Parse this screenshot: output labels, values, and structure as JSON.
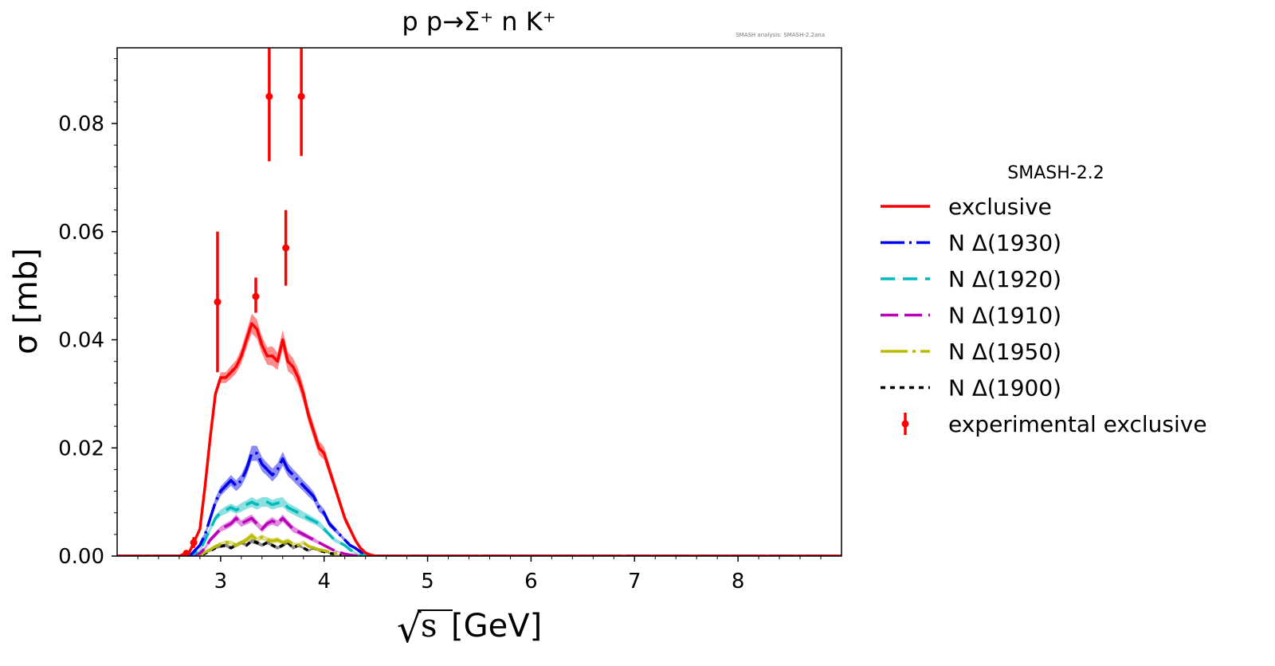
{
  "chart_data": {
    "type": "line",
    "title": "p p→Σ⁺ n K⁺",
    "annotation": "SMASH analysis: SMASH-2.2ana",
    "xlabel_sqrt": "√",
    "xlabel_s": "s",
    "xlabel_unit": "[GeV]",
    "ylabel": "σ [mb]",
    "xlim": [
      2.0,
      9.0
    ],
    "ylim": [
      0.0,
      0.094
    ],
    "xticks": [
      3,
      4,
      5,
      6,
      7,
      8
    ],
    "xtick_labels": [
      "3",
      "4",
      "5",
      "6",
      "7",
      "8"
    ],
    "yticks": [
      0.0,
      0.02,
      0.04,
      0.06,
      0.08
    ],
    "ytick_labels": [
      "0.00",
      "0.02",
      "0.04",
      "0.06",
      "0.08"
    ],
    "grid": false,
    "legend_placement": "outside-right",
    "legend_title": "SMASH-2.2",
    "x": [
      2.0,
      2.6,
      2.7,
      2.8,
      2.85,
      2.9,
      2.95,
      3.0,
      3.05,
      3.1,
      3.15,
      3.2,
      3.25,
      3.3,
      3.35,
      3.4,
      3.45,
      3.5,
      3.55,
      3.6,
      3.65,
      3.7,
      3.75,
      3.8,
      3.85,
      3.9,
      3.95,
      4.0,
      4.05,
      4.1,
      4.15,
      4.2,
      4.25,
      4.3,
      4.35,
      4.4,
      4.45,
      4.5,
      5.0,
      9.0
    ],
    "series": [
      {
        "name": "exclusive",
        "color": "#ff0000",
        "dash": "solid",
        "values": [
          0,
          0,
          0.0008,
          0.005,
          0.013,
          0.022,
          0.03,
          0.033,
          0.033,
          0.034,
          0.035,
          0.037,
          0.04,
          0.043,
          0.042,
          0.039,
          0.037,
          0.037,
          0.036,
          0.04,
          0.036,
          0.035,
          0.033,
          0.03,
          0.026,
          0.023,
          0.02,
          0.019,
          0.016,
          0.013,
          0.01,
          0.007,
          0.005,
          0.003,
          0.0015,
          0.0006,
          0.0002,
          0,
          0,
          0
        ],
        "band": [
          0,
          0,
          0.0003,
          0.0005,
          0.0006,
          0.0007,
          0.0008,
          0.001,
          0.001,
          0.0012,
          0.0012,
          0.0014,
          0.0016,
          0.0018,
          0.0018,
          0.0016,
          0.0016,
          0.0018,
          0.0016,
          0.0018,
          0.0018,
          0.0016,
          0.0016,
          0.0016,
          0.0014,
          0.0014,
          0.0013,
          0.0012,
          0.0011,
          0.001,
          0.0009,
          0.0008,
          0.0006,
          0.0005,
          0.0004,
          0.0003,
          0.0002,
          0,
          0,
          0
        ]
      },
      {
        "name": "N Δ(1930)",
        "color": "#0000ee",
        "dash": "30 6 3 6",
        "values": [
          0,
          0,
          0,
          0.002,
          0.004,
          0.007,
          0.01,
          0.012,
          0.013,
          0.014,
          0.013,
          0.014,
          0.016,
          0.019,
          0.019,
          0.017,
          0.016,
          0.015,
          0.016,
          0.018,
          0.016,
          0.015,
          0.014,
          0.013,
          0.012,
          0.011,
          0.009,
          0.008,
          0.006,
          0.005,
          0.004,
          0.003,
          0.002,
          0.0015,
          0.0008,
          0.0003,
          0.0001,
          0,
          0,
          0
        ],
        "band": [
          0,
          0,
          0,
          0.0004,
          0.0005,
          0.0006,
          0.0008,
          0.0009,
          0.0009,
          0.001,
          0.001,
          0.0011,
          0.0012,
          0.0014,
          0.0014,
          0.0013,
          0.0012,
          0.0012,
          0.0012,
          0.0013,
          0.0012,
          0.0011,
          0.0011,
          0.001,
          0.001,
          0.0009,
          0.0008,
          0.0007,
          0.0006,
          0.0005,
          0.0004,
          0.0003,
          0.0003,
          0.0002,
          0.0002,
          0.0001,
          0.0001,
          0,
          0,
          0
        ]
      },
      {
        "name": "N Δ(1920)",
        "color": "#00bbbb",
        "dash": "18 10",
        "values": [
          0,
          0,
          0,
          0.001,
          0.003,
          0.005,
          0.007,
          0.008,
          0.0085,
          0.009,
          0.0085,
          0.009,
          0.0095,
          0.01,
          0.0095,
          0.01,
          0.01,
          0.0095,
          0.0098,
          0.01,
          0.009,
          0.0085,
          0.008,
          0.0075,
          0.007,
          0.0065,
          0.006,
          0.005,
          0.004,
          0.003,
          0.0025,
          0.002,
          0.0012,
          0.0006,
          0.0003,
          0.0001,
          0,
          0,
          0,
          0
        ],
        "band": [
          0,
          0,
          0,
          0.0003,
          0.0004,
          0.0005,
          0.0006,
          0.0006,
          0.0007,
          0.0007,
          0.0007,
          0.0008,
          0.0008,
          0.0009,
          0.0009,
          0.0009,
          0.0009,
          0.0009,
          0.0009,
          0.0009,
          0.0008,
          0.0008,
          0.0008,
          0.0007,
          0.0007,
          0.0006,
          0.0006,
          0.0005,
          0.0004,
          0.0004,
          0.0003,
          0.0003,
          0.0002,
          0.0002,
          0.0001,
          0.0001,
          0,
          0,
          0,
          0
        ]
      },
      {
        "name": "N Δ(1910)",
        "color": "#bb00bb",
        "dash": "22 8",
        "values": [
          0,
          0,
          0,
          0.0005,
          0.0015,
          0.003,
          0.004,
          0.005,
          0.0055,
          0.006,
          0.007,
          0.006,
          0.0065,
          0.007,
          0.006,
          0.005,
          0.006,
          0.0065,
          0.006,
          0.007,
          0.006,
          0.005,
          0.0045,
          0.004,
          0.0035,
          0.003,
          0.0025,
          0.002,
          0.0015,
          0.001,
          0.0007,
          0.0004,
          0.0002,
          0.0001,
          0,
          0,
          0,
          0,
          0,
          0
        ],
        "band": [
          0,
          0,
          0,
          0.0002,
          0.0003,
          0.0004,
          0.0005,
          0.0005,
          0.0006,
          0.0006,
          0.0007,
          0.0006,
          0.0007,
          0.0007,
          0.0006,
          0.0006,
          0.0006,
          0.0007,
          0.0006,
          0.0007,
          0.0006,
          0.0006,
          0.0005,
          0.0005,
          0.0004,
          0.0004,
          0.0003,
          0.0003,
          0.0002,
          0.0002,
          0.0001,
          0.0001,
          0.0001,
          0,
          0,
          0,
          0,
          0,
          0,
          0
        ]
      },
      {
        "name": "N Δ(1950)",
        "color": "#bbbb00",
        "dash": "34 6 4 6",
        "values": [
          0,
          0,
          0,
          0.0002,
          0.0007,
          0.0012,
          0.0018,
          0.0022,
          0.0025,
          0.0025,
          0.002,
          0.0025,
          0.003,
          0.0038,
          0.003,
          0.0035,
          0.003,
          0.0028,
          0.003,
          0.0025,
          0.0028,
          0.0022,
          0.002,
          0.0025,
          0.0018,
          0.0015,
          0.0012,
          0.001,
          0.0008,
          0.0005,
          0.0003,
          0.0002,
          0.0001,
          0,
          0,
          0,
          0,
          0,
          0,
          0
        ],
        "band": [
          0,
          0,
          0,
          0.0001,
          0.0002,
          0.0003,
          0.0003,
          0.0004,
          0.0004,
          0.0004,
          0.0004,
          0.0004,
          0.0005,
          0.0006,
          0.0005,
          0.0005,
          0.0005,
          0.0005,
          0.0005,
          0.0004,
          0.0005,
          0.0004,
          0.0004,
          0.0004,
          0.0003,
          0.0003,
          0.0003,
          0.0002,
          0.0002,
          0.0001,
          0.0001,
          0.0001,
          0,
          0,
          0,
          0,
          0,
          0,
          0,
          0
        ]
      },
      {
        "name": "N Δ(1900)",
        "color": "#000000",
        "dash": "6 6",
        "values": [
          0,
          0,
          0,
          0.0001,
          0.0005,
          0.001,
          0.0015,
          0.0018,
          0.002,
          0.0015,
          0.002,
          0.0025,
          0.002,
          0.0028,
          0.0025,
          0.002,
          0.0025,
          0.002,
          0.0015,
          0.002,
          0.0025,
          0.0015,
          0.002,
          0.0015,
          0.001,
          0.0015,
          0.001,
          0.0008,
          0.0005,
          0.0004,
          0.0002,
          0.0001,
          0,
          0,
          0,
          0,
          0,
          0,
          0,
          0
        ],
        "band": [
          0,
          0,
          0,
          0.0001,
          0.0001,
          0.0002,
          0.0002,
          0.0003,
          0.0003,
          0.0003,
          0.0003,
          0.0003,
          0.0003,
          0.0004,
          0.0004,
          0.0003,
          0.0003,
          0.0003,
          0.0003,
          0.0003,
          0.0003,
          0.0003,
          0.0003,
          0.0002,
          0.0002,
          0.0002,
          0.0002,
          0.0001,
          0.0001,
          0.0001,
          0,
          0,
          0,
          0,
          0,
          0,
          0,
          0,
          0,
          0
        ]
      }
    ],
    "experimental": {
      "name": "experimental exclusive",
      "color": "#ff0000",
      "points": [
        {
          "x": 2.67,
          "y": 0.0005,
          "ylow": 0.0,
          "yhigh": 0.001
        },
        {
          "x": 2.74,
          "y": 0.0025,
          "ylow": 0.0015,
          "yhigh": 0.0035
        },
        {
          "x": 2.97,
          "y": 0.047,
          "ylow": 0.034,
          "yhigh": 0.06
        },
        {
          "x": 3.34,
          "y": 0.048,
          "ylow": 0.045,
          "yhigh": 0.0515
        },
        {
          "x": 3.47,
          "y": 0.085,
          "ylow": 0.073,
          "yhigh": 0.097
        },
        {
          "x": 3.63,
          "y": 0.057,
          "ylow": 0.05,
          "yhigh": 0.064
        },
        {
          "x": 3.78,
          "y": 0.085,
          "ylow": 0.074,
          "yhigh": 0.097
        }
      ]
    }
  }
}
